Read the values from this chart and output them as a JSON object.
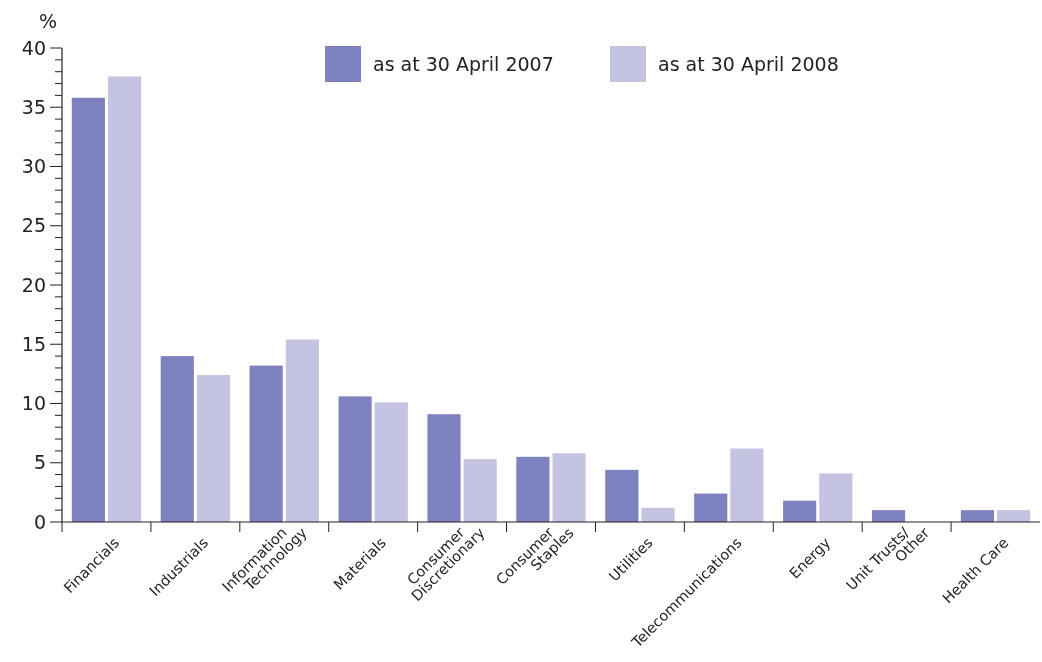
{
  "chart_data": {
    "type": "bar",
    "ylabel": "%",
    "categories": [
      "Financials",
      "Industrials",
      "Information\nTechnology",
      "Materials",
      "Consumer\nDiscretionary",
      "Consumer\nStaples",
      "Utilities",
      "Telecommunications",
      "Energy",
      "Unit Trusts/\nOther",
      "Health Care"
    ],
    "series": [
      {
        "name": "as at 30 April 2007",
        "color": "#7f82c0",
        "values": [
          35.8,
          14.0,
          13.2,
          10.6,
          9.1,
          5.5,
          4.4,
          2.4,
          1.8,
          1.0,
          1.0
        ]
      },
      {
        "name": "as at 30 April 2008",
        "color": "#c4c3e2",
        "values": [
          37.6,
          12.4,
          15.4,
          10.1,
          5.3,
          5.8,
          1.2,
          6.2,
          4.1,
          0,
          1.0
        ]
      }
    ],
    "ylim": [
      0,
      40
    ],
    "yticks": [
      0,
      {
        "value": 1,
        "label": null
      },
      {
        "value": 2,
        "label": null
      },
      {
        "value": 3,
        "label": null
      },
      {
        "value": 4,
        "label": null
      },
      5,
      {
        "value": 6,
        "label": null
      },
      {
        "value": 7,
        "label": null
      },
      {
        "value": 8,
        "label": null
      },
      {
        "value": 9,
        "label": null
      },
      10,
      {
        "value": 11,
        "label": null
      },
      {
        "value": 12,
        "label": null
      },
      {
        "value": 13,
        "label": null
      },
      {
        "value": 14,
        "label": null
      },
      15,
      {
        "value": 16,
        "label": null
      },
      {
        "value": 17,
        "label": null
      },
      {
        "value": 18,
        "label": null
      },
      {
        "value": 19,
        "label": null
      },
      20,
      {
        "value": 21,
        "label": null
      },
      {
        "value": 22,
        "label": null
      },
      {
        "value": 23,
        "label": null
      },
      {
        "value": 24,
        "label": null
      },
      25,
      {
        "value": 26,
        "label": null
      },
      {
        "value": 27,
        "label": null
      },
      {
        "value": 28,
        "label": null
      },
      {
        "value": 29,
        "label": null
      },
      30,
      {
        "value": 31,
        "label": null
      },
      {
        "value": 32,
        "label": null
      },
      {
        "value": 33,
        "label": null
      },
      {
        "value": 34,
        "label": null
      },
      35,
      {
        "value": 36,
        "label": null
      },
      {
        "value": 37,
        "label": null
      },
      {
        "value": 38,
        "label": null
      },
      {
        "value": 39,
        "label": null
      },
      40
    ],
    "grid": false,
    "legend": "top"
  }
}
